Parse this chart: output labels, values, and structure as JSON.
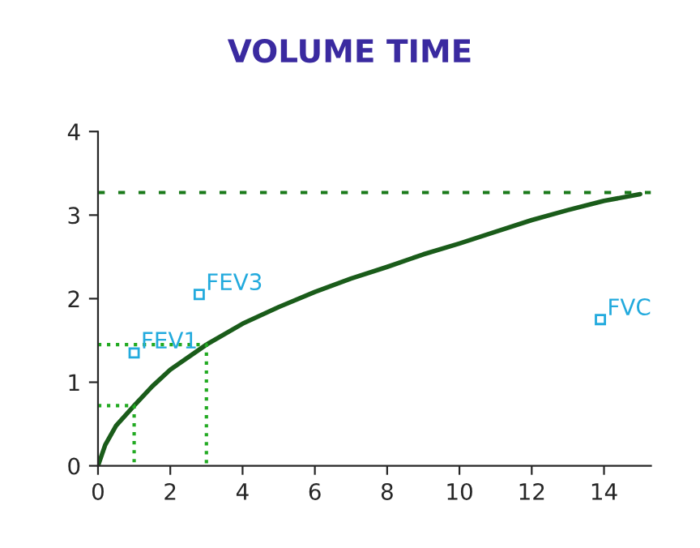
{
  "chart_data": {
    "type": "line",
    "title": "VOLUME TIME",
    "xlim": [
      0,
      15.3
    ],
    "ylim": [
      0,
      4
    ],
    "xticks": [
      0,
      2,
      4,
      6,
      8,
      10,
      12,
      14
    ],
    "yticks": [
      0,
      1,
      2,
      3,
      4
    ],
    "grid": false,
    "series": [
      {
        "color": "#1a5c1a",
        "line_style": "solid",
        "x": [
          0,
          0.2,
          0.5,
          1,
          1.5,
          2,
          3,
          4,
          5,
          6,
          7,
          8,
          9,
          10,
          11,
          12,
          13,
          14,
          15
        ],
        "values": [
          0,
          0.25,
          0.48,
          0.72,
          0.95,
          1.15,
          1.45,
          1.7,
          1.9,
          2.08,
          2.24,
          2.38,
          2.53,
          2.66,
          2.8,
          2.94,
          3.06,
          3.17,
          3.25
        ]
      },
      {
        "color": "#22aa22",
        "line_style": "dotted",
        "x": [
          0,
          1,
          1
        ],
        "values": [
          0.72,
          0.72,
          0
        ]
      },
      {
        "color": "#22aa22",
        "line_style": "dotted",
        "x": [
          0,
          3,
          3
        ],
        "values": [
          1.45,
          1.45,
          0
        ]
      }
    ],
    "ref_lines": [
      {
        "axis": "y",
        "value": 3.27,
        "color": "#1a7a1a",
        "line_style": "dashed"
      }
    ],
    "annotations": [
      {
        "text": "FEV1",
        "x": 1,
        "y": 1.35
      },
      {
        "text": "FEV3",
        "x": 2.8,
        "y": 2.05
      },
      {
        "text": "FVC",
        "x": 13.9,
        "y": 1.75
      }
    ]
  }
}
